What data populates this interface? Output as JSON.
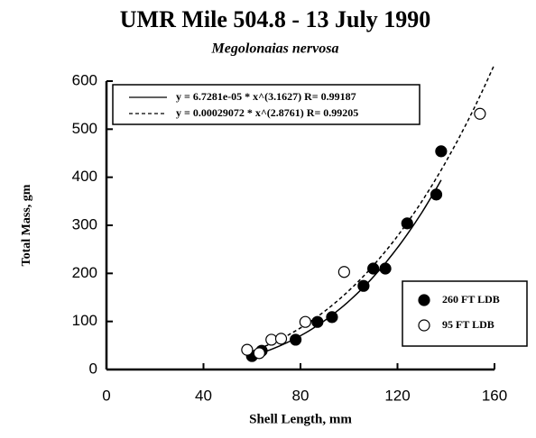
{
  "chart_data": {
    "type": "scatter",
    "title": "UMR Mile 504.8 - 13 July 1990",
    "subtitle": "Megolonaias nervosa",
    "x_label": "Shell Length, mm",
    "y_label": "Total Mass, gm",
    "xlim": [
      0,
      160
    ],
    "xticks": [
      0,
      40,
      80,
      120,
      160
    ],
    "ylim": [
      0,
      600
    ],
    "yticks": [
      0,
      100,
      200,
      300,
      400,
      500,
      600
    ],
    "series": [
      {
        "name": "260 FT LDB",
        "color": "#000000",
        "fill": "#000000",
        "x": [
          60,
          64,
          78,
          87,
          93,
          106,
          110,
          115,
          124,
          136,
          138
        ],
        "values": [
          28,
          39,
          62,
          99,
          109,
          174,
          210,
          210,
          304,
          364,
          454
        ]
      },
      {
        "name": "95 FT LDB",
        "color": "#000000",
        "fill": "#ffffff",
        "x": [
          58,
          63,
          68,
          72,
          82,
          98,
          154
        ],
        "values": [
          41,
          34,
          62,
          64,
          99,
          203,
          532
        ]
      }
    ],
    "fits": [
      {
        "label": "y = 6.7281e-05 * x^(3.1627) R= 0.99187",
        "style": "solid"
      },
      {
        "label": "y = 0.00029072 * x^(2.8761) R= 0.99205",
        "style": "dashed"
      }
    ]
  }
}
